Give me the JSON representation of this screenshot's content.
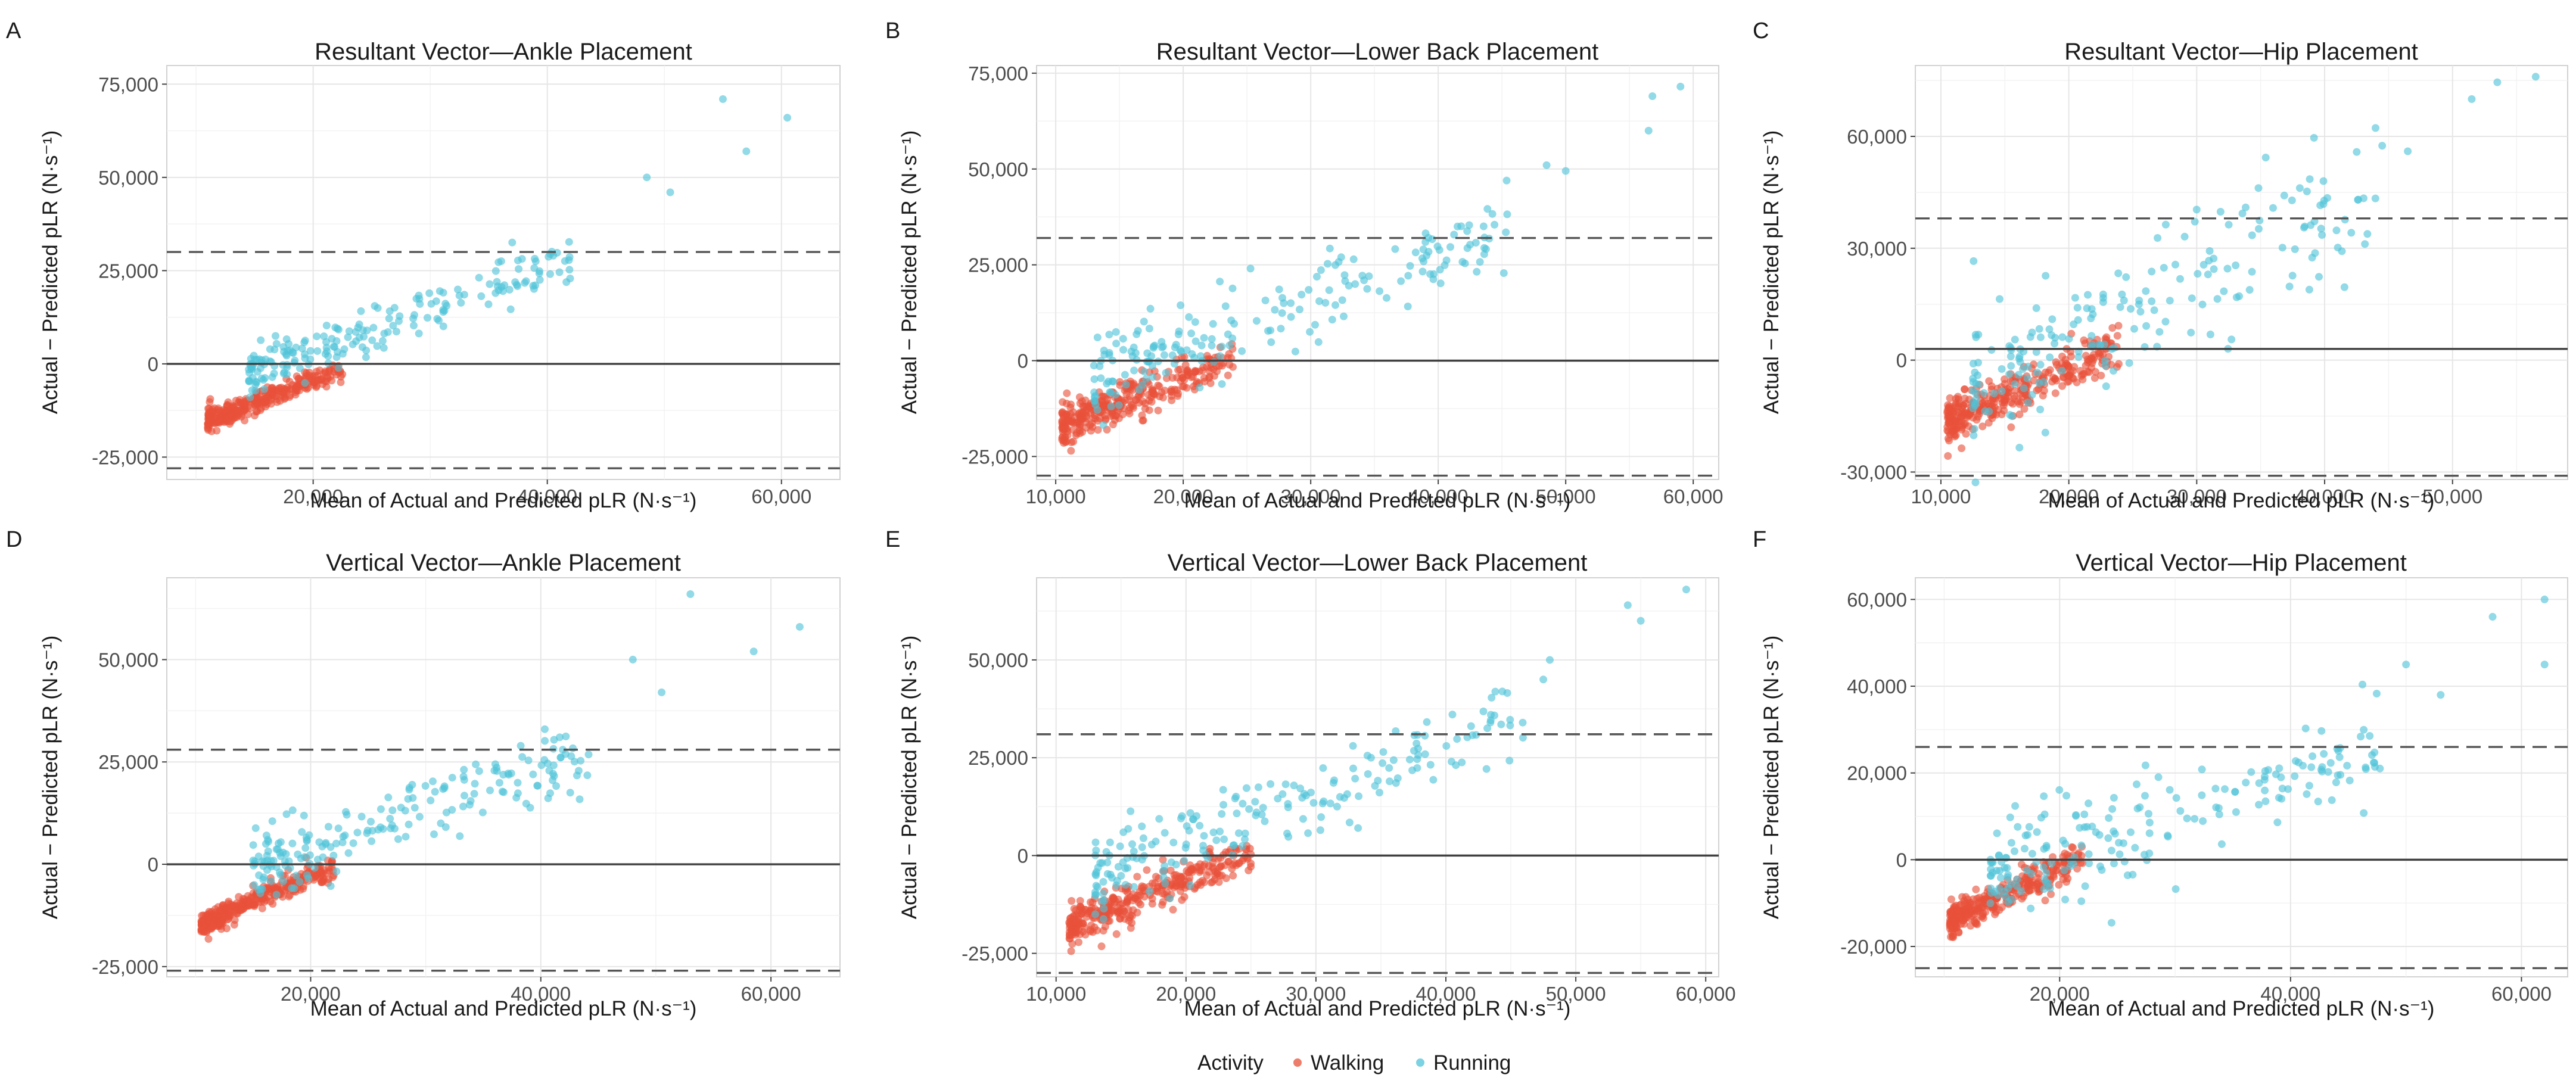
{
  "legend": {
    "title": "Activity",
    "items": [
      {
        "label": "Walking",
        "color": "#e8503a"
      },
      {
        "label": "Running",
        "color": "#4fc3d9"
      }
    ]
  },
  "chart_data": [
    {
      "type": "scatter",
      "tag": "A",
      "seed": 11,
      "title": "Resultant Vector—Ankle Placement",
      "xlabel": "Mean of Actual and Predicted pLR (N·s⁻¹)",
      "ylabel": "Actual − Predicted pLR (N·s⁻¹)",
      "xlim": [
        7500,
        65000
      ],
      "ylim": [
        -31000,
        80000
      ],
      "x_ticks": [
        20000,
        40000,
        60000
      ],
      "x_tick_labels": [
        "20,000",
        "40,000",
        "60,000"
      ],
      "y_ticks": [
        -25000,
        0,
        25000,
        50000,
        75000
      ],
      "y_tick_labels": [
        "-25,000",
        "0",
        "25,000",
        "50,000",
        "75,000"
      ],
      "zero_line": 0,
      "upper_loa": 30000,
      "lower_loa": -28000,
      "walking": {
        "n": 330,
        "x_range": [
          11000,
          22500
        ],
        "start": [
          11000,
          -15000
        ],
        "slope": 1.15,
        "noise": 1500
      },
      "running": {
        "n": 200,
        "x_range": [
          14500,
          42000
        ],
        "start": [
          14500,
          -2500
        ],
        "slope": 1.12,
        "noise": 3500
      },
      "running_extremes": [
        [
          48500,
          50000
        ],
        [
          50500,
          46000
        ],
        [
          55000,
          71000
        ],
        [
          57000,
          57000
        ],
        [
          60500,
          66000
        ]
      ]
    },
    {
      "type": "scatter",
      "tag": "B",
      "seed": 22,
      "title": "Resultant Vector—Lower Back Placement",
      "xlabel": "Mean of Actual and Predicted pLR (N·s⁻¹)",
      "ylabel": "Actual − Predicted pLR (N·s⁻¹)",
      "xlim": [
        8500,
        62000
      ],
      "ylim": [
        -31000,
        77000
      ],
      "x_ticks": [
        10000,
        20000,
        30000,
        40000,
        50000,
        60000
      ],
      "x_tick_labels": [
        "10,000",
        "20,000",
        "30,000",
        "40,000",
        "50,000",
        "60,000"
      ],
      "y_ticks": [
        -25000,
        0,
        25000,
        50000,
        75000
      ],
      "y_tick_labels": [
        "-25,000",
        "0",
        "25,000",
        "50,000",
        "75,000"
      ],
      "zero_line": 0,
      "upper_loa": 32000,
      "lower_loa": -30000,
      "walking": {
        "n": 330,
        "x_range": [
          10500,
          24000
        ],
        "start": [
          10500,
          -17000
        ],
        "slope": 1.3,
        "noise": 2500
      },
      "running": {
        "n": 200,
        "x_range": [
          13000,
          46000
        ],
        "start": [
          13000,
          -5000
        ],
        "slope": 1.22,
        "noise": 5500
      },
      "running_extremes": [
        [
          48500,
          51000
        ],
        [
          50000,
          49500
        ],
        [
          56500,
          60000
        ],
        [
          56800,
          69000
        ],
        [
          59000,
          71500
        ]
      ]
    },
    {
      "type": "scatter",
      "tag": "C",
      "seed": 33,
      "title": "Resultant Vector—Hip Placement",
      "xlabel": "Mean of Actual and Predicted pLR (N·s⁻¹)",
      "ylabel": "Actual − Predicted pLR (N·s⁻¹)",
      "xlim": [
        8000,
        59000
      ],
      "ylim": [
        -32000,
        79000
      ],
      "x_ticks": [
        10000,
        20000,
        30000,
        40000,
        50000
      ],
      "x_tick_labels": [
        "10,000",
        "20,000",
        "30,000",
        "40,000",
        "50,000"
      ],
      "y_ticks": [
        -30000,
        0,
        30000,
        60000
      ],
      "y_tick_labels": [
        "-30,000",
        "0",
        "30,000",
        "60,000"
      ],
      "zero_line": 3000,
      "upper_loa": 38000,
      "lower_loa": -31000,
      "walking": {
        "n": 330,
        "x_range": [
          10500,
          24000
        ],
        "start": [
          10500,
          -16000
        ],
        "slope": 1.45,
        "noise": 3000
      },
      "running": {
        "n": 200,
        "x_range": [
          12500,
          44000
        ],
        "start": [
          12500,
          -6000
        ],
        "slope": 1.5,
        "noise": 9000
      },
      "running_extremes": [
        [
          44500,
          57500
        ],
        [
          46500,
          56000
        ],
        [
          51500,
          70000
        ],
        [
          53500,
          74500
        ],
        [
          56500,
          76000
        ]
      ]
    },
    {
      "type": "scatter",
      "tag": "D",
      "seed": 44,
      "title": "Vertical Vector—Ankle Placement",
      "xlabel": "Mean of Actual and Predicted pLR (N·s⁻¹)",
      "ylabel": "Actual − Predicted pLR (N·s⁻¹)",
      "xlim": [
        7500,
        66000
      ],
      "ylim": [
        -27500,
        70000
      ],
      "x_ticks": [
        20000,
        40000,
        60000
      ],
      "x_tick_labels": [
        "20,000",
        "40,000",
        "60,000"
      ],
      "y_ticks": [
        -25000,
        0,
        25000,
        50000
      ],
      "y_tick_labels": [
        "-25,000",
        "0",
        "25,000",
        "50,000"
      ],
      "zero_line": 0,
      "upper_loa": 28000,
      "lower_loa": -26000,
      "walking": {
        "n": 330,
        "x_range": [
          10500,
          22000
        ],
        "start": [
          10500,
          -14500
        ],
        "slope": 1.2,
        "noise": 1500
      },
      "running": {
        "n": 200,
        "x_range": [
          15000,
          45000
        ],
        "start": [
          15000,
          -2000
        ],
        "slope": 1.05,
        "noise": 4500
      },
      "running_extremes": [
        [
          48000,
          50000
        ],
        [
          50500,
          42000
        ],
        [
          53000,
          66000
        ],
        [
          58500,
          52000
        ],
        [
          62500,
          58000
        ]
      ]
    },
    {
      "type": "scatter",
      "tag": "E",
      "seed": 55,
      "title": "Vertical Vector—Lower Back Placement",
      "xlabel": "Mean of Actual and Predicted pLR (N·s⁻¹)",
      "ylabel": "Actual − Predicted pLR (N·s⁻¹)",
      "xlim": [
        8500,
        61000
      ],
      "ylim": [
        -31000,
        71000
      ],
      "x_ticks": [
        10000,
        20000,
        30000,
        40000,
        50000,
        60000
      ],
      "x_tick_labels": [
        "10,000",
        "20,000",
        "30,000",
        "40,000",
        "50,000",
        "60,000"
      ],
      "y_ticks": [
        -25000,
        0,
        25000,
        50000
      ],
      "y_tick_labels": [
        "-25,000",
        "0",
        "25,000",
        "50,000"
      ],
      "zero_line": 0,
      "upper_loa": 31000,
      "lower_loa": -30000,
      "walking": {
        "n": 330,
        "x_range": [
          11000,
          25000
        ],
        "start": [
          11000,
          -18000
        ],
        "slope": 1.35,
        "noise": 2500
      },
      "running": {
        "n": 200,
        "x_range": [
          13000,
          46000
        ],
        "start": [
          13000,
          -5000
        ],
        "slope": 1.2,
        "noise": 5500
      },
      "running_extremes": [
        [
          47500,
          45000
        ],
        [
          48000,
          50000
        ],
        [
          54000,
          64000
        ],
        [
          55000,
          60000
        ],
        [
          58500,
          68000
        ]
      ]
    },
    {
      "type": "scatter",
      "tag": "F",
      "seed": 66,
      "title": "Vertical Vector—Hip Placement",
      "xlabel": "Mean of Actual and Predicted pLR (N·s⁻¹)",
      "ylabel": "Actual − Predicted pLR (N·s⁻¹)",
      "xlim": [
        7500,
        64000
      ],
      "ylim": [
        -27000,
        65000
      ],
      "x_ticks": [
        20000,
        40000,
        60000
      ],
      "x_tick_labels": [
        "20,000",
        "40,000",
        "60,000"
      ],
      "y_ticks": [
        -20000,
        0,
        20000,
        40000,
        60000
      ],
      "y_tick_labels": [
        "-20,000",
        "0",
        "20,000",
        "40,000",
        "60,000"
      ],
      "zero_line": 0,
      "upper_loa": 26000,
      "lower_loa": -25000,
      "walking": {
        "n": 330,
        "x_range": [
          10500,
          22000
        ],
        "start": [
          10500,
          -14000
        ],
        "slope": 1.25,
        "noise": 1800
      },
      "running": {
        "n": 200,
        "x_range": [
          14000,
          48000
        ],
        "start": [
          14000,
          -3000
        ],
        "slope": 0.85,
        "noise": 6000
      },
      "running_extremes": [
        [
          50000,
          45000
        ],
        [
          53000,
          38000
        ],
        [
          57500,
          56000
        ],
        [
          62000,
          60000
        ],
        [
          62000,
          45000
        ]
      ]
    }
  ]
}
